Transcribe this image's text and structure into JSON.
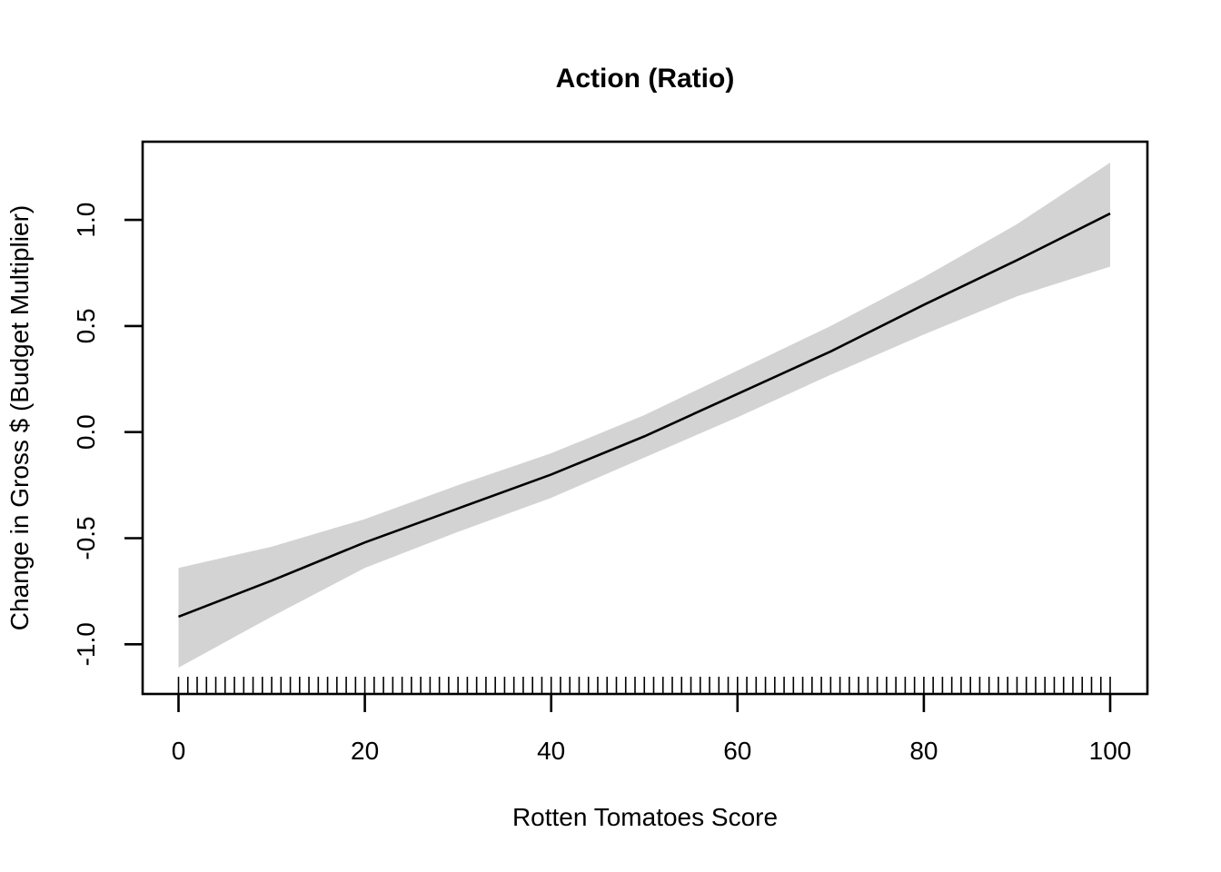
{
  "title": "Action (Ratio)",
  "x_axis": {
    "label": "Rotten Tomatoes Score",
    "tick_labels": [
      "0",
      "20",
      "40",
      "60",
      "80",
      "100"
    ],
    "ticks": [
      0,
      20,
      40,
      60,
      80,
      100
    ]
  },
  "y_axis": {
    "label": "Change in Gross $ (Budget Multiplier)",
    "tick_labels": [
      "-1.0",
      "-0.5",
      "0.0",
      "0.5",
      "1.0"
    ],
    "ticks": [
      -1.0,
      -0.5,
      0.0,
      0.5,
      1.0
    ]
  },
  "chart_data": {
    "type": "line",
    "title": "Action (Ratio)",
    "xlabel": "Rotten Tomatoes Score",
    "ylabel": "Change in Gross $ (Budget Multiplier)",
    "xlim": [
      -4,
      104
    ],
    "ylim": [
      -1.23,
      1.37
    ],
    "grid": false,
    "legend": false,
    "x": [
      0,
      10,
      20,
      30,
      40,
      50,
      60,
      70,
      80,
      90,
      100
    ],
    "series": [
      {
        "name": "fitted_line",
        "values": [
          -0.87,
          -0.7,
          -0.52,
          -0.36,
          -0.2,
          -0.02,
          0.18,
          0.38,
          0.6,
          0.81,
          1.03
        ]
      },
      {
        "name": "ci_upper",
        "values": [
          -0.64,
          -0.54,
          -0.41,
          -0.25,
          -0.1,
          0.08,
          0.29,
          0.5,
          0.73,
          0.98,
          1.27
        ]
      },
      {
        "name": "ci_lower",
        "values": [
          -1.11,
          -0.87,
          -0.64,
          -0.47,
          -0.31,
          -0.12,
          0.07,
          0.27,
          0.46,
          0.64,
          0.78
        ]
      }
    ],
    "rug_x": [
      0,
      1,
      2,
      3,
      4,
      5,
      6,
      7,
      8,
      9,
      10,
      11,
      12,
      13,
      14,
      15,
      16,
      17,
      18,
      19,
      20,
      21,
      22,
      23,
      24,
      25,
      26,
      27,
      28,
      29,
      30,
      31,
      32,
      33,
      34,
      35,
      36,
      37,
      38,
      39,
      40,
      41,
      42,
      43,
      44,
      45,
      46,
      47,
      48,
      49,
      50,
      51,
      52,
      53,
      54,
      55,
      56,
      57,
      58,
      59,
      60,
      61,
      62,
      63,
      64,
      65,
      66,
      67,
      68,
      69,
      70,
      71,
      72,
      73,
      74,
      75,
      76,
      77,
      78,
      79,
      80,
      81,
      82,
      83,
      84,
      85,
      86,
      87,
      88,
      89,
      90,
      91,
      92,
      93,
      94,
      95,
      96,
      97,
      98,
      99,
      100
    ],
    "band_color": "#d3d3d3",
    "line_color": "#000000",
    "axis_color": "#000000",
    "background_color": "#ffffff"
  }
}
